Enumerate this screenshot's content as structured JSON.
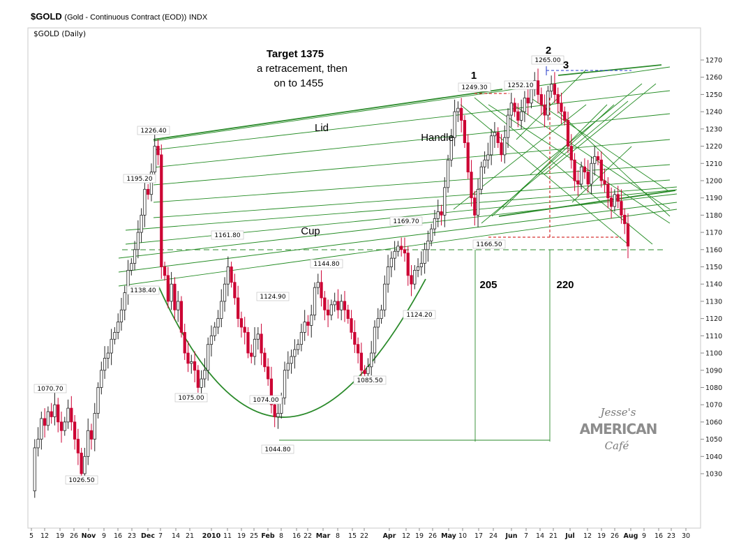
{
  "header": {
    "symbol": "$GOLD",
    "description": "(Gold - Continuous Contract (EOD))",
    "exchange": "INDX",
    "panel_label": "$GOLD (Daily)"
  },
  "colors": {
    "up_candle": "#ffffff",
    "down_candle": "#cc0033",
    "trendline": "#2a8a2a",
    "grid_green": "#228b22",
    "red_dashed": "#cc0000",
    "blue_dashed": "#1f35c8"
  },
  "logo": {
    "line1": "Jesse's",
    "line2": "AMERICAN",
    "line3": "Café"
  },
  "chart_data": {
    "type": "candlestick",
    "title": "$GOLD (Daily)",
    "ylim": [
      1020,
      1275
    ],
    "y_ticks": [
      1030,
      1040,
      1050,
      1060,
      1070,
      1080,
      1090,
      1100,
      1110,
      1120,
      1130,
      1140,
      1150,
      1160,
      1170,
      1180,
      1190,
      1200,
      1210,
      1220,
      1230,
      1240,
      1250,
      1260,
      1270
    ],
    "x_ticks": [
      "5",
      "12",
      "19",
      "26",
      "Nov",
      "9",
      "16",
      "23",
      "Dec",
      "7",
      "14",
      "21",
      "2010",
      "11",
      "19",
      "25",
      "Feb",
      "8",
      "16",
      "22",
      "Mar",
      "8",
      "15",
      "22",
      "Apr",
      "12",
      "19",
      "26",
      "May",
      "10",
      "17",
      "24",
      "Jun",
      "7",
      "14",
      "21",
      "Jul",
      "12",
      "19",
      "26",
      "Aug",
      "9",
      "16",
      "23",
      "30"
    ],
    "bold_ticks": [
      "Nov",
      "Dec",
      "2010",
      "Feb",
      "Mar",
      "Apr",
      "May",
      "Jun",
      "Jul",
      "Aug"
    ],
    "close_path": [
      1020,
      1045,
      1050,
      1062,
      1058,
      1066,
      1063,
      1070,
      1060,
      1055,
      1060,
      1068,
      1060,
      1050,
      1042,
      1030,
      1040,
      1055,
      1050,
      1065,
      1080,
      1090,
      1097,
      1100,
      1108,
      1112,
      1118,
      1125,
      1135,
      1148,
      1152,
      1160,
      1170,
      1180,
      1195,
      1192,
      1205,
      1220,
      1215,
      1150,
      1145,
      1130,
      1140,
      1125,
      1130,
      1112,
      1100,
      1094,
      1095,
      1090,
      1080,
      1085,
      1090,
      1105,
      1110,
      1115,
      1120,
      1130,
      1140,
      1150,
      1141,
      1132,
      1120,
      1115,
      1112,
      1100,
      1098,
      1108,
      1111,
      1100,
      1092,
      1085,
      1070,
      1063,
      1065,
      1074,
      1090,
      1094,
      1098,
      1102,
      1105,
      1112,
      1118,
      1116,
      1122,
      1138,
      1141,
      1132,
      1125,
      1122,
      1128,
      1130,
      1125,
      1130,
      1125,
      1120,
      1112,
      1105,
      1100,
      1090,
      1088,
      1092,
      1100,
      1115,
      1120,
      1125,
      1140,
      1150,
      1155,
      1159,
      1162,
      1160,
      1158,
      1145,
      1140,
      1148,
      1150,
      1152,
      1160,
      1165,
      1172,
      1178,
      1182,
      1180,
      1196,
      1212,
      1225,
      1240,
      1242,
      1235,
      1222,
      1205,
      1190,
      1180,
      1195,
      1208,
      1212,
      1215,
      1226,
      1228,
      1222,
      1215,
      1225,
      1238,
      1245,
      1240,
      1235,
      1240,
      1248,
      1245,
      1253,
      1258,
      1250,
      1244,
      1238,
      1252,
      1256,
      1250,
      1245,
      1240,
      1235,
      1220,
      1212,
      1200,
      1198,
      1208,
      1205,
      1198,
      1210,
      1214,
      1212,
      1200,
      1198,
      1190,
      1185,
      1192,
      1188,
      1180,
      1175,
      1162
    ],
    "price_labels": [
      {
        "text": "1070.70"
      },
      {
        "text": "1026.50"
      },
      {
        "text": "1226.40"
      },
      {
        "text": "1195.20"
      },
      {
        "text": "1138.40"
      },
      {
        "text": "1075.00"
      },
      {
        "text": "1161.80"
      },
      {
        "text": "1124.90"
      },
      {
        "text": "1074.00"
      },
      {
        "text": "1044.80"
      },
      {
        "text": "1144.80"
      },
      {
        "text": "1085.50"
      },
      {
        "text": "1124.20"
      },
      {
        "text": "1169.70"
      },
      {
        "text": "1249.30"
      },
      {
        "text": "1166.50"
      },
      {
        "text": "1252.10"
      },
      {
        "text": "1265.00"
      }
    ],
    "annotations": [
      {
        "text": "Target 1375"
      },
      {
        "text": "a retracement,  then"
      },
      {
        "text": "on  to 1455"
      },
      {
        "text": "Lid"
      },
      {
        "text": "Handle"
      },
      {
        "text": "Cup"
      },
      {
        "text": "1"
      },
      {
        "text": "2"
      },
      {
        "text": "3"
      },
      {
        "text": "205"
      },
      {
        "text": "220"
      }
    ]
  }
}
